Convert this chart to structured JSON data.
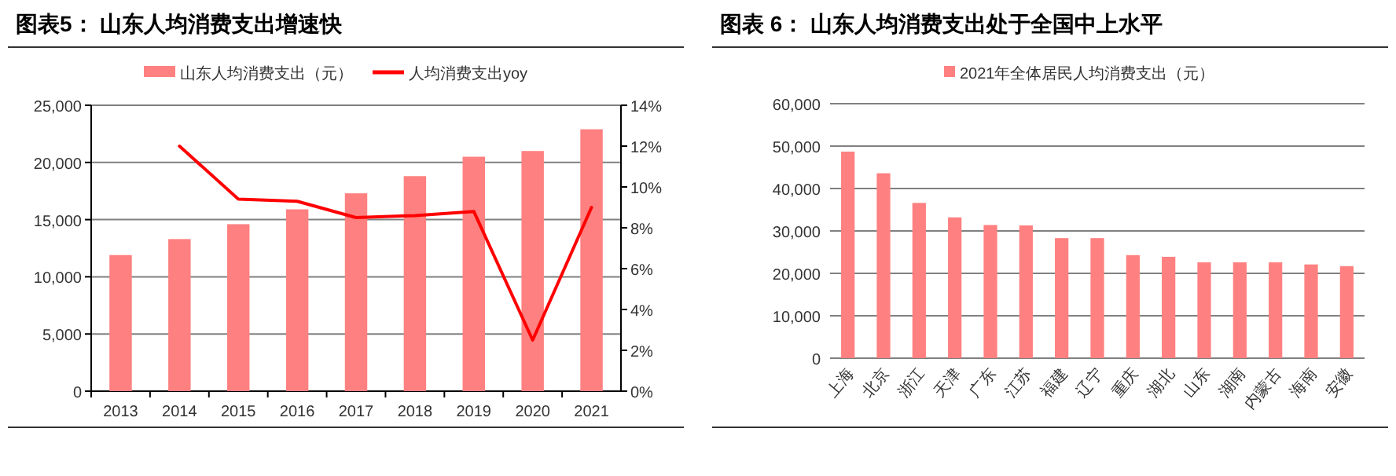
{
  "chart_data": [
    {
      "type": "bar",
      "title": "图表5： 山东人均消费支出增速快",
      "categories": [
        "2013",
        "2014",
        "2015",
        "2016",
        "2017",
        "2018",
        "2019",
        "2020",
        "2021"
      ],
      "series": [
        {
          "name": "山东人均消费支出（元）",
          "color": "#ff8080",
          "values": [
            11900,
            13300,
            14600,
            15900,
            17300,
            18800,
            20500,
            21000,
            22900
          ]
        },
        {
          "name": "人均消费支出yoy",
          "type": "line",
          "axis": "y2",
          "color": "#ff0000",
          "values": [
            null,
            12.0,
            9.4,
            9.3,
            8.5,
            8.6,
            8.8,
            2.5,
            9.0
          ]
        }
      ],
      "ylim": [
        0,
        25000
      ],
      "yticks": [
        {
          "value": 0,
          "label": "0"
        },
        {
          "value": 5000,
          "label": "5,000"
        },
        {
          "value": 10000,
          "label": "10,000"
        },
        {
          "value": 15000,
          "label": "15,000"
        },
        {
          "value": 20000,
          "label": "20,000"
        },
        {
          "value": 25000,
          "label": "25,000"
        }
      ],
      "y2lim": [
        0,
        14
      ],
      "y2ticks": [
        {
          "value": 0,
          "label": "0%"
        },
        {
          "value": 2,
          "label": "2%"
        },
        {
          "value": 4,
          "label": "4%"
        },
        {
          "value": 6,
          "label": "6%"
        },
        {
          "value": 8,
          "label": "8%"
        },
        {
          "value": 10,
          "label": "10%"
        },
        {
          "value": 12,
          "label": "12%"
        },
        {
          "value": 14,
          "label": "14%"
        }
      ],
      "grid": "y",
      "legend": "top"
    },
    {
      "type": "bar",
      "title": "图表 6： 山东人均消费支出处于全国中上水平",
      "categories": [
        "上海",
        "北京",
        "浙江",
        "天津",
        "广东",
        "江苏",
        "福建",
        "辽宁",
        "重庆",
        "湖北",
        "山东",
        "湖南",
        "内蒙古",
        "海南",
        "安徽"
      ],
      "series": [
        {
          "name": "2021年全体居民人均消费支出（元）",
          "color": "#ff8080",
          "values": [
            48700,
            43600,
            36600,
            33200,
            31400,
            31300,
            28300,
            28300,
            24300,
            23900,
            22600,
            22600,
            22600,
            22100,
            21700
          ]
        }
      ],
      "ylim": [
        0,
        60000
      ],
      "yticks": [
        {
          "value": 0,
          "label": "0"
        },
        {
          "value": 10000,
          "label": "10,000"
        },
        {
          "value": 20000,
          "label": "20,000"
        },
        {
          "value": 30000,
          "label": "30,000"
        },
        {
          "value": 40000,
          "label": "40,000"
        },
        {
          "value": 50000,
          "label": "50,000"
        },
        {
          "value": 60000,
          "label": "60,000"
        }
      ],
      "grid": "y",
      "legend": "top"
    }
  ]
}
